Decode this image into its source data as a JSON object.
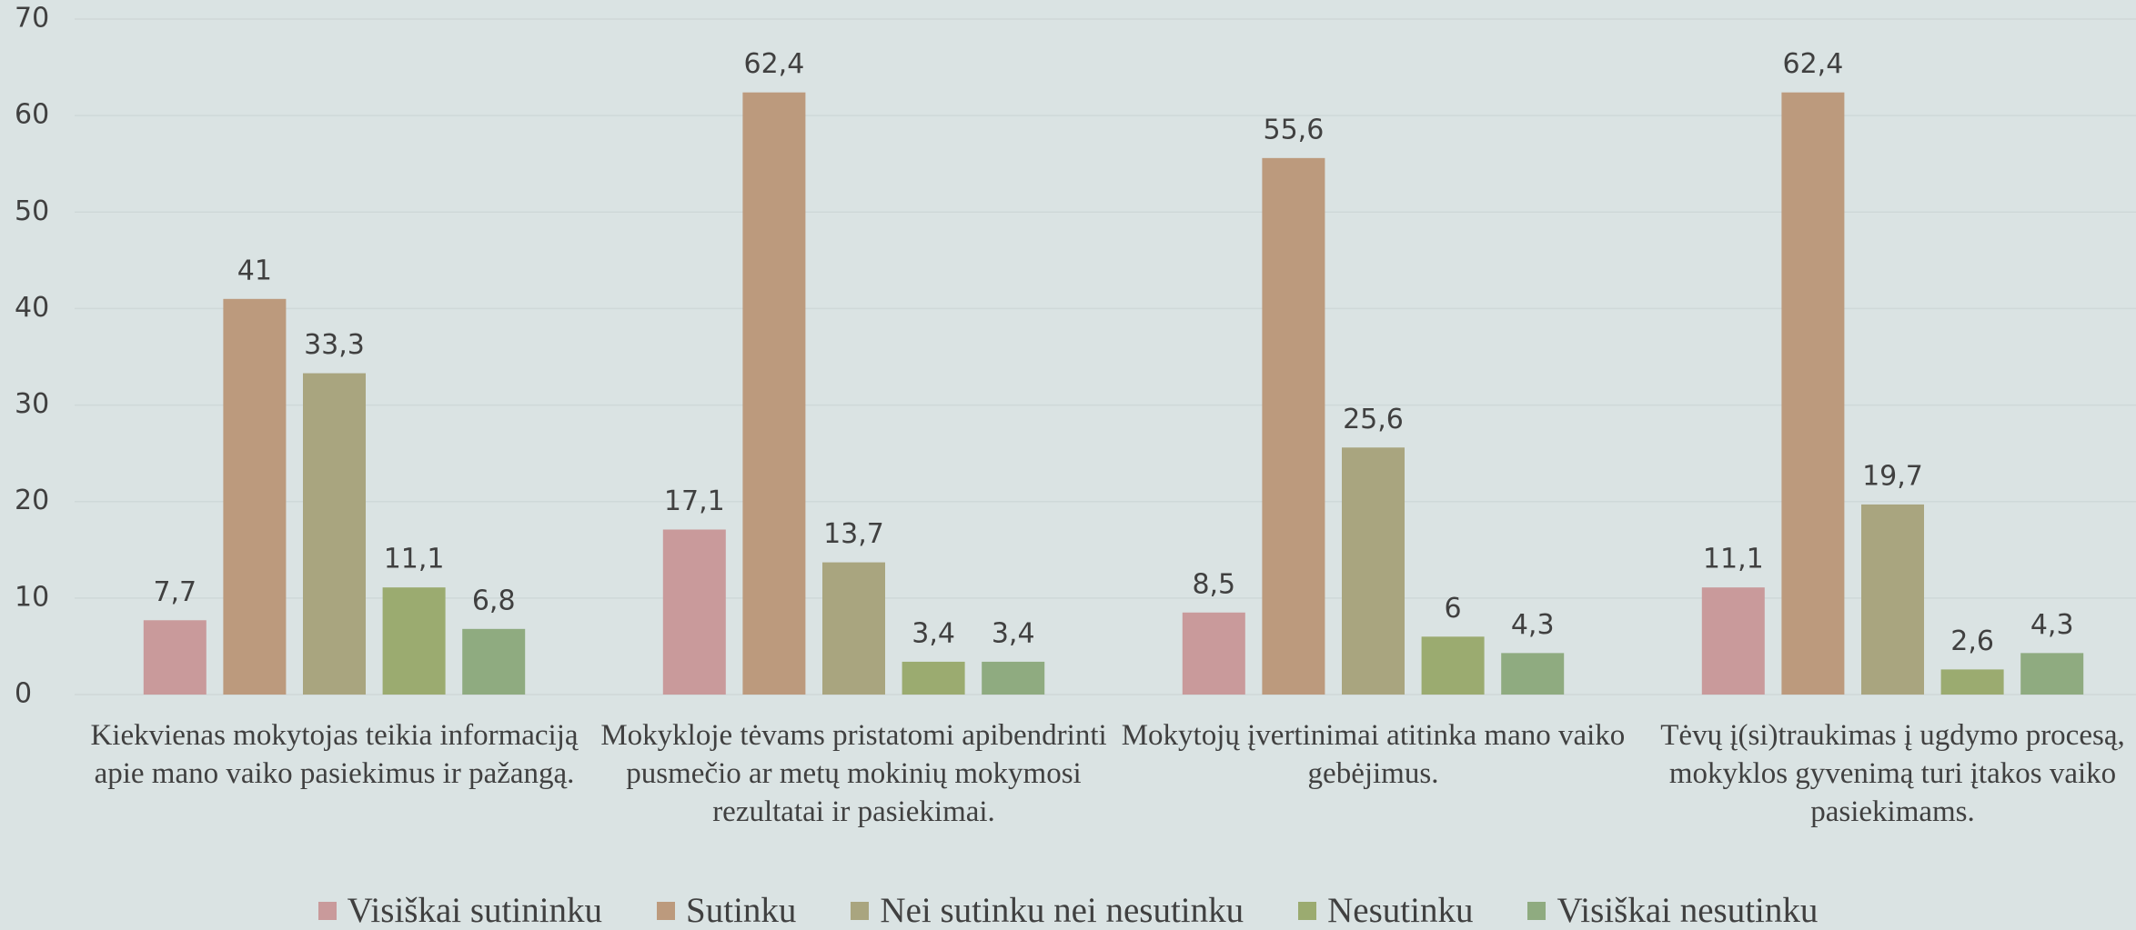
{
  "chart_data": {
    "type": "bar",
    "categories": [
      "Kiekvienas mokytojas teikia informaciją apie mano vaiko pasiekimus ir pažangą.",
      "Mokykloje tėvams pristatomi apibendrinti pusmečio ar metų mokinių mokymosi rezultatai ir pasiekimai.",
      "Mokytojų įvertinimai atitinka mano vaiko gebėjimus.",
      "Tėvų į(si)traukimas į ugdymo procesą, mokyklos gyvenimą turi įtakos vaiko pasiekimams."
    ],
    "series": [
      {
        "name": "Visiškai sutininku",
        "color": "#c99a9b",
        "values": [
          7.7,
          17.1,
          8.5,
          11.1
        ],
        "value_labels": [
          "7,7",
          "17,1",
          "8,5",
          "11,1"
        ]
      },
      {
        "name": "Sutinku",
        "color": "#bc9a7d",
        "values": [
          41,
          62.4,
          55.6,
          62.4
        ],
        "value_labels": [
          "41",
          "62,4",
          "55,6",
          "62,4"
        ]
      },
      {
        "name": "Nei sutinku nei nesutinku",
        "color": "#a9a57f",
        "values": [
          33.3,
          13.7,
          25.6,
          19.7
        ],
        "value_labels": [
          "33,3",
          "13,7",
          "25,6",
          "19,7"
        ]
      },
      {
        "name": "Nesutinku",
        "color": "#9bab70",
        "values": [
          11.1,
          3.4,
          6,
          2.6
        ],
        "value_labels": [
          "11,1",
          "3,4",
          "6",
          "2,6"
        ]
      },
      {
        "name": "Visiškai nesutinku",
        "color": "#8fab80",
        "values": [
          6.8,
          3.4,
          4.3,
          4.3
        ],
        "value_labels": [
          "6,8",
          "3,4",
          "4,3",
          "4,3"
        ]
      }
    ],
    "ylim": [
      0,
      70
    ],
    "yticks": [
      0,
      10,
      20,
      30,
      40,
      50,
      60,
      70
    ],
    "grid": true,
    "legend": "bottom"
  }
}
